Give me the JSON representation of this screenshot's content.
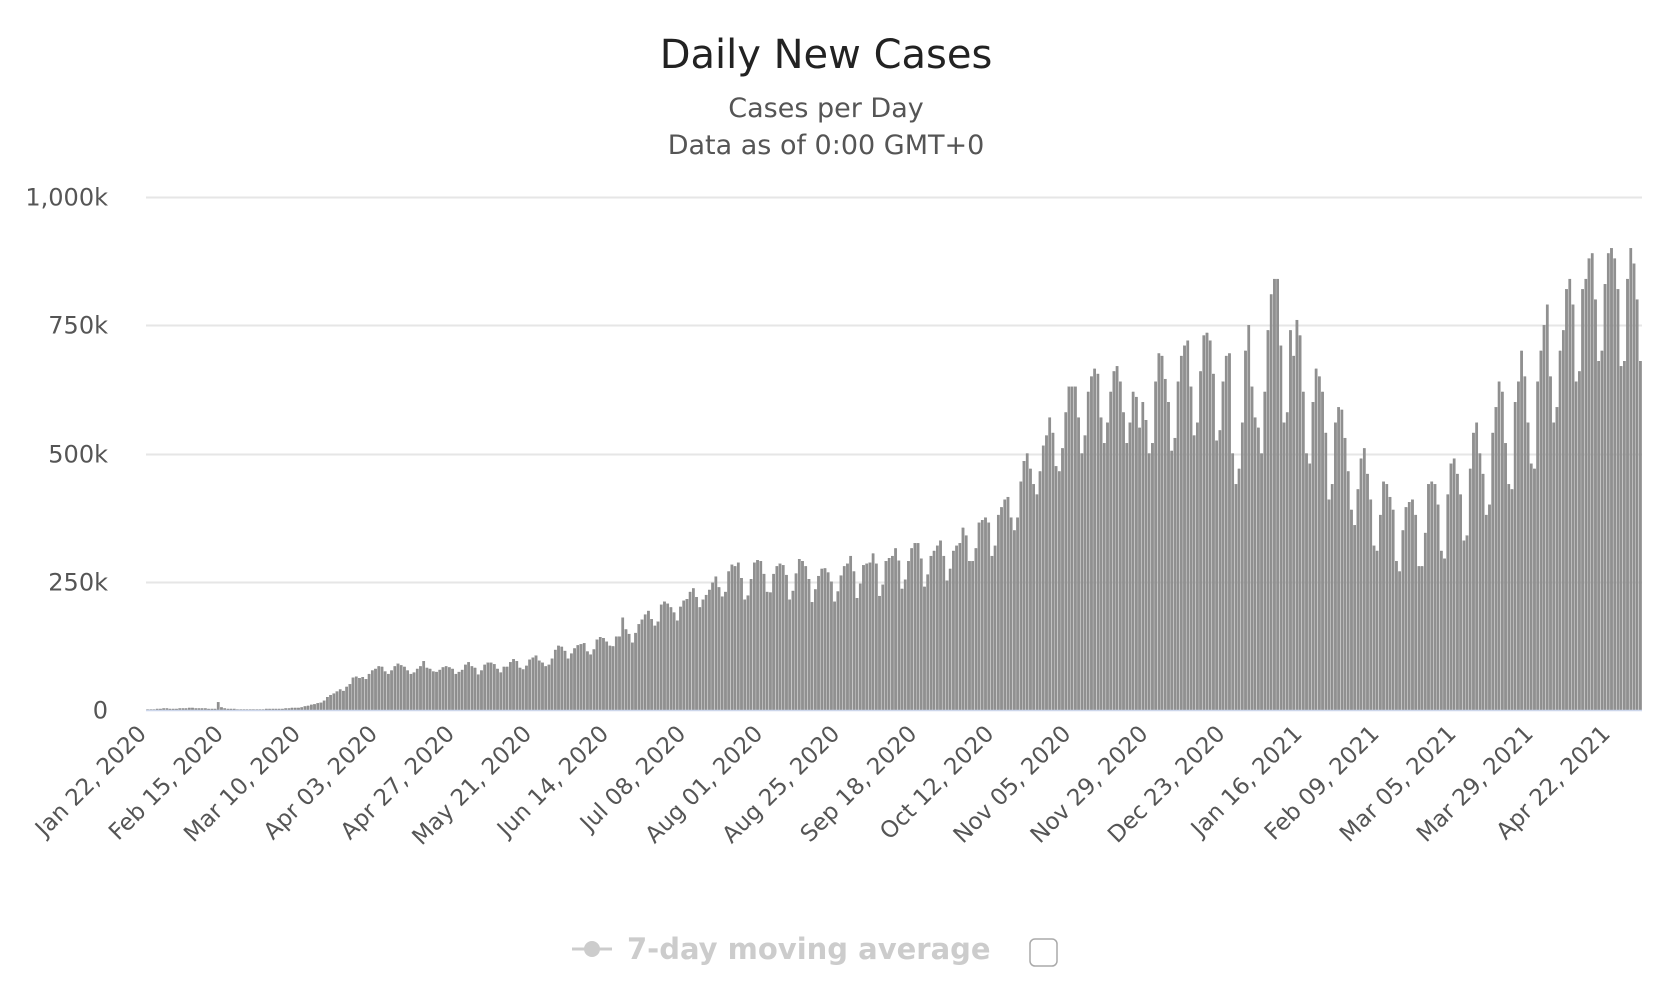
{
  "chart_data": {
    "type": "bar",
    "title": "Daily New Cases",
    "subtitle": "Cases per Day",
    "subtitle2": "Data as of 0:00 GMT+0",
    "xlabel": "",
    "ylabel": "",
    "start_date": "Jan 22, 2020",
    "x_interval_days": 1,
    "values_unit": "thousand cases",
    "ylim": [
      0,
      1000
    ],
    "yticks": [
      0,
      250,
      500,
      750,
      1000
    ],
    "ytick_labels": [
      "0",
      "250k",
      "500k",
      "750k",
      "1,000k"
    ],
    "xtick_every_days": 24,
    "xtick_labels": [
      "Jan 22, 2020",
      "Feb 15, 2020",
      "Mar 10, 2020",
      "Apr 03, 2020",
      "Apr 27, 2020",
      "May 21, 2020",
      "Jun 14, 2020",
      "Jul 08, 2020",
      "Aug 01, 2020",
      "Aug 25, 2020",
      "Sep 18, 2020",
      "Oct 12, 2020",
      "Nov 05, 2020",
      "Nov 29, 2020",
      "Dec 23, 2020",
      "Jan 16, 2021",
      "Feb 09, 2021",
      "Mar 05, 2021",
      "Mar 29, 2021",
      "Apr 22, 2021"
    ],
    "grid": true,
    "bar_color": "#909090",
    "legend": {
      "label": "7-day moving average",
      "placement": "bottom",
      "enabled": false
    },
    "values": [
      1,
      1,
      1,
      2,
      2,
      3,
      3,
      2,
      2,
      2,
      3,
      3,
      3,
      4,
      4,
      3,
      3,
      3,
      3,
      2,
      2,
      2,
      15,
      5,
      3,
      2,
      2,
      2,
      1,
      1,
      1,
      1,
      1,
      1,
      1,
      1,
      1,
      2,
      2,
      2,
      2,
      2,
      2,
      3,
      3,
      4,
      4,
      4,
      5,
      7,
      8,
      10,
      11,
      13,
      14,
      18,
      25,
      29,
      32,
      36,
      40,
      37,
      45,
      50,
      63,
      65,
      62,
      64,
      60,
      70,
      77,
      80,
      85,
      84,
      75,
      70,
      77,
      85,
      90,
      87,
      84,
      77,
      70,
      73,
      80,
      85,
      95,
      82,
      80,
      75,
      74,
      78,
      83,
      85,
      83,
      80,
      70,
      74,
      78,
      88,
      93,
      85,
      82,
      69,
      77,
      88,
      92,
      92,
      89,
      80,
      73,
      84,
      84,
      93,
      99,
      95,
      82,
      79,
      86,
      98,
      102,
      106,
      96,
      92,
      85,
      88,
      100,
      117,
      125,
      123,
      115,
      100,
      110,
      120,
      126,
      128,
      130,
      114,
      108,
      118,
      137,
      142,
      140,
      133,
      125,
      124,
      143,
      143,
      180,
      157,
      148,
      131,
      150,
      167,
      176,
      186,
      193,
      177,
      164,
      172,
      205,
      211,
      207,
      200,
      190,
      174,
      201,
      213,
      216,
      230,
      237,
      220,
      200,
      215,
      224,
      234,
      248,
      260,
      239,
      221,
      230,
      270,
      283,
      280,
      287,
      257,
      215,
      223,
      255,
      287,
      292,
      290,
      265,
      230,
      229,
      265,
      280,
      285,
      282,
      263,
      215,
      232,
      266,
      294,
      290,
      280,
      255,
      210,
      235,
      261,
      275,
      276,
      268,
      250,
      211,
      231,
      262,
      280,
      285,
      300,
      270,
      218,
      246,
      282,
      285,
      287,
      305,
      285,
      222,
      244,
      290,
      296,
      300,
      315,
      291,
      236,
      254,
      290,
      315,
      325,
      325,
      295,
      240,
      264,
      300,
      310,
      320,
      330,
      300,
      252,
      275,
      310,
      320,
      325,
      355,
      340,
      290,
      290,
      315,
      365,
      370,
      375,
      365,
      300,
      320,
      380,
      395,
      410,
      415,
      375,
      350,
      375,
      445,
      485,
      500,
      470,
      440,
      420,
      465,
      515,
      535,
      570,
      540,
      475,
      465,
      510,
      580,
      630,
      630,
      630,
      570,
      500,
      535,
      620,
      650,
      665,
      655,
      570,
      520,
      560,
      620,
      660,
      670,
      640,
      580,
      520,
      560,
      620,
      610,
      550,
      600,
      565,
      500,
      520,
      640,
      695,
      690,
      645,
      600,
      505,
      530,
      640,
      690,
      710,
      720,
      630,
      535,
      560,
      660,
      730,
      735,
      720,
      655,
      525,
      545,
      640,
      690,
      695,
      500,
      440,
      470,
      560,
      700,
      750,
      630,
      570,
      550,
      500,
      620,
      740,
      810,
      840,
      840,
      710,
      560,
      580,
      740,
      690,
      760,
      730,
      620,
      500,
      480,
      600,
      665,
      650,
      620,
      540,
      410,
      440,
      560,
      590,
      585,
      530,
      465,
      390,
      360,
      430,
      490,
      510,
      460,
      410,
      320,
      310,
      380,
      445,
      440,
      415,
      390,
      290,
      270,
      350,
      395,
      405,
      410,
      380,
      280,
      280,
      345,
      440,
      445,
      440,
      400,
      310,
      295,
      420,
      480,
      490,
      460,
      420,
      330,
      340,
      470,
      540,
      560,
      500,
      460,
      380,
      400,
      540,
      590,
      640,
      620,
      520,
      440,
      430,
      600,
      640,
      700,
      650,
      560,
      480,
      470,
      640,
      700,
      750,
      790,
      650,
      560,
      590,
      700,
      740,
      820,
      840,
      790,
      640,
      660,
      820,
      840,
      880,
      890,
      800,
      680,
      700,
      830,
      890,
      900,
      880,
      820,
      670,
      680,
      840,
      900,
      870,
      800,
      680
    ]
  }
}
